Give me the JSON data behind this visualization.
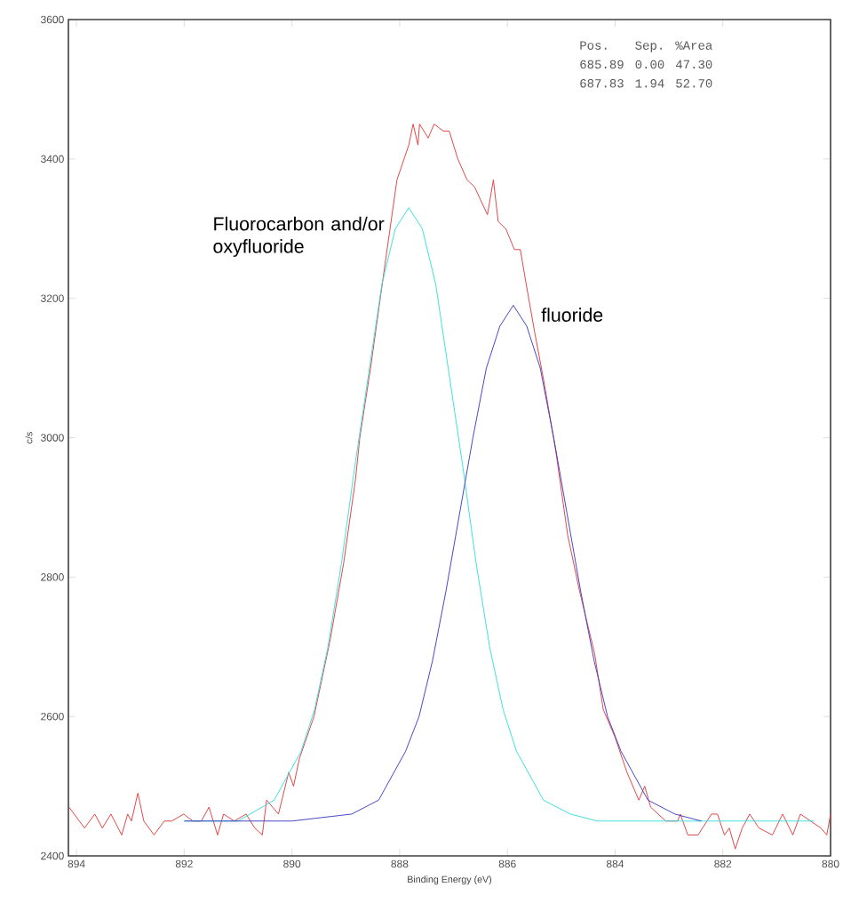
{
  "chart_data": {
    "type": "line",
    "xlabel": "Binding Energy (eV)",
    "ylabel": "c/s",
    "xlim": [
      894.15,
      880
    ],
    "xticks": [
      894,
      892,
      890,
      888,
      886,
      884,
      882,
      880
    ],
    "ylim": [
      2400,
      3600
    ],
    "yticks": [
      2400,
      2600,
      2800,
      3000,
      3200,
      3400,
      3600
    ],
    "annotations": [
      "Pos.",
      "Sep.",
      "%Area",
      "685.89",
      "0.00",
      "47.30",
      "687.83",
      "1.94",
      "52.70"
    ],
    "series": [
      {
        "color": "#e03a3a",
        "x": [
          894.14,
          893.85,
          893.66,
          893.52,
          893.36,
          893.16,
          893.05,
          892.98,
          892.86,
          892.75,
          892.56,
          892.37,
          892.23,
          892.01,
          891.84,
          891.68,
          891.54,
          891.38,
          891.27,
          891.07,
          890.85,
          890.69,
          890.55,
          890.47,
          890.25,
          890.06,
          889.97,
          889.86,
          889.59,
          889.29,
          889.04,
          888.82,
          888.74,
          888.54,
          888.27,
          888.05,
          887.83,
          887.75,
          887.66,
          887.63,
          887.47,
          887.36,
          887.19,
          887.08,
          886.92,
          886.75,
          886.61,
          886.37,
          886.26,
          886.17,
          886.03,
          885.87,
          885.76,
          885.65,
          885.49,
          885.32,
          885.1,
          884.88,
          884.66,
          884.38,
          884.22,
          884.0,
          883.78,
          883.56,
          883.45,
          883.34,
          883.06,
          882.84,
          882.79,
          882.65,
          882.46,
          882.21,
          882.1,
          881.97,
          881.88,
          881.77,
          881.64,
          881.5,
          881.33,
          881.08,
          880.89,
          880.7,
          880.56,
          880.37,
          880.18,
          880.07,
          880.0
        ],
        "values": [
          2470,
          2440,
          2460,
          2440,
          2460,
          2430,
          2460,
          2450,
          2490,
          2450,
          2430,
          2450,
          2450,
          2460,
          2450,
          2450,
          2470,
          2430,
          2460,
          2450,
          2460,
          2440,
          2430,
          2480,
          2460,
          2520,
          2500,
          2540,
          2600,
          2710,
          2820,
          2940,
          3000,
          3100,
          3250,
          3370,
          3420,
          3450,
          3420,
          3450,
          3430,
          3450,
          3440,
          3440,
          3400,
          3370,
          3360,
          3320,
          3370,
          3310,
          3300,
          3270,
          3270,
          3220,
          3150,
          3080,
          2980,
          2860,
          2780,
          2690,
          2610,
          2570,
          2520,
          2480,
          2500,
          2470,
          2450,
          2450,
          2460,
          2430,
          2430,
          2460,
          2460,
          2430,
          2440,
          2410,
          2440,
          2460,
          2440,
          2430,
          2460,
          2430,
          2460,
          2450,
          2440,
          2430,
          2460
        ]
      },
      {
        "name": "Fluorocarbon and/or oxyfluoride",
        "color": "#33dede",
        "x": [
          892.0,
          891.0,
          890.33,
          889.83,
          889.58,
          889.33,
          889.08,
          888.83,
          888.58,
          888.33,
          888.08,
          887.83,
          887.58,
          887.33,
          887.08,
          886.83,
          886.58,
          886.33,
          886.08,
          885.83,
          885.33,
          884.83,
          884.33,
          883.0,
          882.0,
          880.3
        ],
        "values": [
          2450,
          2450,
          2480,
          2550,
          2610,
          2700,
          2820,
          2960,
          3090,
          3220,
          3300,
          3330,
          3300,
          3220,
          3090,
          2960,
          2820,
          2700,
          2610,
          2550,
          2480,
          2460,
          2450,
          2450,
          2450,
          2450
        ]
      },
      {
        "name": "fluoride",
        "color": "#3a3ac4",
        "x": [
          892.0,
          890.0,
          888.89,
          888.39,
          887.89,
          887.64,
          887.39,
          887.14,
          886.89,
          886.64,
          886.39,
          886.14,
          885.89,
          885.64,
          885.39,
          885.14,
          884.89,
          884.64,
          884.39,
          884.14,
          883.89,
          883.39,
          882.89,
          882.4
        ],
        "values": [
          2450,
          2450,
          2460,
          2480,
          2550,
          2600,
          2680,
          2780,
          2890,
          3000,
          3100,
          3160,
          3190,
          3160,
          3100,
          3000,
          2890,
          2780,
          2680,
          2600,
          2550,
          2480,
          2460,
          2450
        ]
      }
    ]
  }
}
